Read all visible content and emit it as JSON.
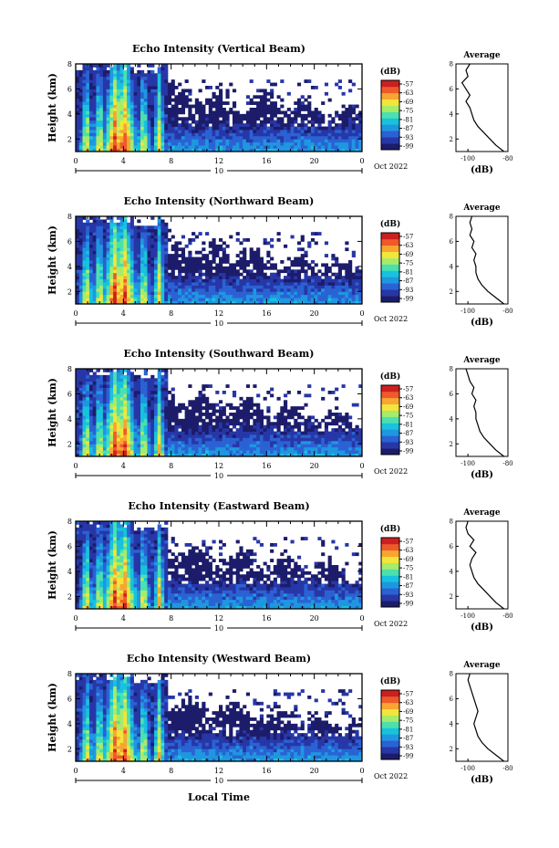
{
  "chart_data": {
    "type": "heatmap",
    "xlabel": "Local Time",
    "date_label": "10",
    "date_suffix": "Oct 2022",
    "x_ticks": [
      "0",
      "4",
      "8",
      "12",
      "16",
      "20",
      "0"
    ],
    "x_range": [
      0,
      24
    ],
    "y_ticks": [
      "2",
      "4",
      "6",
      "8"
    ],
    "ylabel": "Height (km)",
    "y_range": [
      1,
      8
    ],
    "colorbar_label": "(dB)",
    "colorbar_ticks": [
      "-57",
      "-63",
      "-69",
      "-75",
      "-81",
      "-87",
      "-93",
      "-99"
    ],
    "colorbar_range": [
      -99,
      -57
    ],
    "colors": [
      "#1c1c6b",
      "#2737a7",
      "#2a62d4",
      "#1f97e0",
      "#18c2dd",
      "#4be0b0",
      "#a6ec6a",
      "#f3e53a",
      "#f8a532",
      "#ee5a2a",
      "#cc1f1f"
    ],
    "panels": [
      {
        "title": "Echo Intensity (Vertical Beam)",
        "avg_title": "Average",
        "avg_xlabel": "(dB)",
        "avg_x_ticks": [
          "-100",
          "-80"
        ],
        "avg_y_ticks": [
          "2",
          "4",
          "6",
          "8"
        ],
        "avg_x_range": [
          -106,
          -80
        ],
        "avg_profile": [
          [
            -82,
            1.0
          ],
          [
            -86,
            1.5
          ],
          [
            -89,
            2.0
          ],
          [
            -92,
            2.5
          ],
          [
            -95,
            3.0
          ],
          [
            -97,
            3.5
          ],
          [
            -98,
            4.0
          ],
          [
            -99,
            4.5
          ],
          [
            -101,
            5.0
          ],
          [
            -99,
            5.5
          ],
          [
            -101,
            6.0
          ],
          [
            -103,
            6.5
          ],
          [
            -100,
            7.0
          ],
          [
            -101,
            7.5
          ],
          [
            -99,
            8.0
          ]
        ]
      },
      {
        "title": "Echo Intensity (Northward Beam)",
        "avg_title": "Average",
        "avg_xlabel": "(dB)",
        "avg_x_ticks": [
          "-100",
          "-80"
        ],
        "avg_y_ticks": [
          "2",
          "4",
          "6",
          "8"
        ],
        "avg_x_range": [
          -106,
          -80
        ],
        "avg_profile": [
          [
            -82,
            1.0
          ],
          [
            -86,
            1.5
          ],
          [
            -90,
            2.0
          ],
          [
            -93,
            2.5
          ],
          [
            -95,
            3.0
          ],
          [
            -96,
            3.5
          ],
          [
            -96,
            4.0
          ],
          [
            -97,
            4.5
          ],
          [
            -96,
            5.0
          ],
          [
            -98,
            5.5
          ],
          [
            -97,
            6.0
          ],
          [
            -99,
            6.5
          ],
          [
            -98,
            7.0
          ],
          [
            -99,
            7.5
          ],
          [
            -98,
            8.0
          ]
        ]
      },
      {
        "title": "Echo Intensity (Southward Beam)",
        "avg_title": "Average",
        "avg_xlabel": "(dB)",
        "avg_x_ticks": [
          "-100",
          "-80"
        ],
        "avg_y_ticks": [
          "2",
          "4",
          "6",
          "8"
        ],
        "avg_x_range": [
          -106,
          -80
        ],
        "avg_profile": [
          [
            -82,
            1.0
          ],
          [
            -86,
            1.5
          ],
          [
            -89,
            2.0
          ],
          [
            -92,
            2.5
          ],
          [
            -94,
            3.0
          ],
          [
            -95,
            3.5
          ],
          [
            -96,
            4.0
          ],
          [
            -96,
            4.5
          ],
          [
            -97,
            5.0
          ],
          [
            -96,
            5.5
          ],
          [
            -98,
            6.0
          ],
          [
            -97,
            6.5
          ],
          [
            -99,
            7.0
          ],
          [
            -100,
            7.5
          ],
          [
            -101,
            8.0
          ]
        ]
      },
      {
        "title": "Echo Intensity (Eastward Beam)",
        "avg_title": "Average",
        "avg_xlabel": "(dB)",
        "avg_x_ticks": [
          "-100",
          "-80"
        ],
        "avg_y_ticks": [
          "2",
          "4",
          "6",
          "8"
        ],
        "avg_x_range": [
          -106,
          -80
        ],
        "avg_profile": [
          [
            -82,
            1.0
          ],
          [
            -86,
            1.5
          ],
          [
            -89,
            2.0
          ],
          [
            -92,
            2.5
          ],
          [
            -95,
            3.0
          ],
          [
            -97,
            3.5
          ],
          [
            -98,
            4.0
          ],
          [
            -99,
            4.5
          ],
          [
            -98,
            5.0
          ],
          [
            -96,
            5.5
          ],
          [
            -99,
            6.0
          ],
          [
            -97,
            6.5
          ],
          [
            -100,
            7.0
          ],
          [
            -101,
            7.5
          ],
          [
            -100,
            8.0
          ]
        ]
      },
      {
        "title": "Echo Intensity (Westward Beam)",
        "avg_title": "Average",
        "avg_xlabel": "(dB)",
        "avg_x_ticks": [
          "-100",
          "-80"
        ],
        "avg_y_ticks": [
          "2",
          "4",
          "6",
          "8"
        ],
        "avg_x_range": [
          -106,
          -80
        ],
        "avg_profile": [
          [
            -82,
            1.0
          ],
          [
            -86,
            1.5
          ],
          [
            -90,
            2.0
          ],
          [
            -93,
            2.5
          ],
          [
            -95,
            3.0
          ],
          [
            -96,
            3.5
          ],
          [
            -97,
            4.0
          ],
          [
            -96,
            4.5
          ],
          [
            -95,
            5.0
          ],
          [
            -96,
            5.5
          ],
          [
            -97,
            6.0
          ],
          [
            -98,
            6.5
          ],
          [
            -99,
            7.0
          ],
          [
            -100,
            7.5
          ],
          [
            -99,
            8.0
          ]
        ]
      }
    ]
  }
}
